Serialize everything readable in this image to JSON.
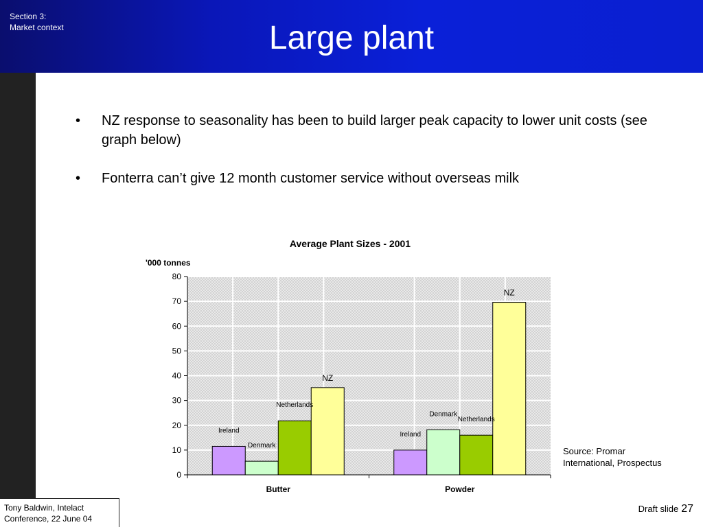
{
  "header": {
    "section_line1": "Section 3:",
    "section_line2": "Market context",
    "title": "Large plant"
  },
  "bullets": [
    "NZ response to seasonality has been to build larger peak capacity to lower unit costs (see graph below)",
    "Fonterra can’t give 12 month customer service without overseas milk"
  ],
  "bullet_glyph": "•",
  "chart_data": {
    "type": "bar",
    "title": "Average Plant Sizes - 2001",
    "ylabel": "'000 tonnes",
    "xlabel": "",
    "ylim": [
      0,
      80
    ],
    "yticks": [
      0,
      10,
      20,
      30,
      40,
      50,
      60,
      70,
      80
    ],
    "categories": [
      "Butter",
      "Powder"
    ],
    "series": [
      {
        "name": "Ireland",
        "values": [
          11.5,
          10
        ],
        "color": "#cc99ff"
      },
      {
        "name": "Denmark",
        "values": [
          5.5,
          18.2
        ],
        "color": "#ccffcc"
      },
      {
        "name": "Netherlands",
        "values": [
          21.8,
          16
        ],
        "color": "#99cc00"
      },
      {
        "name": "NZ",
        "values": [
          35.2,
          69.6
        ],
        "color": "#ffff99"
      }
    ],
    "grid": true,
    "legend": "none"
  },
  "source": {
    "line1": "Source: Promar",
    "line2": "International, Prospectus"
  },
  "footer": {
    "author_line1": "Tony Baldwin, Intelact",
    "author_line2": "Conference, 22 June 04",
    "draft_label": "Draft slide",
    "page_number": "27"
  },
  "colors": {
    "header_blue": "#0a1fd0",
    "left_bar": "#222222"
  }
}
